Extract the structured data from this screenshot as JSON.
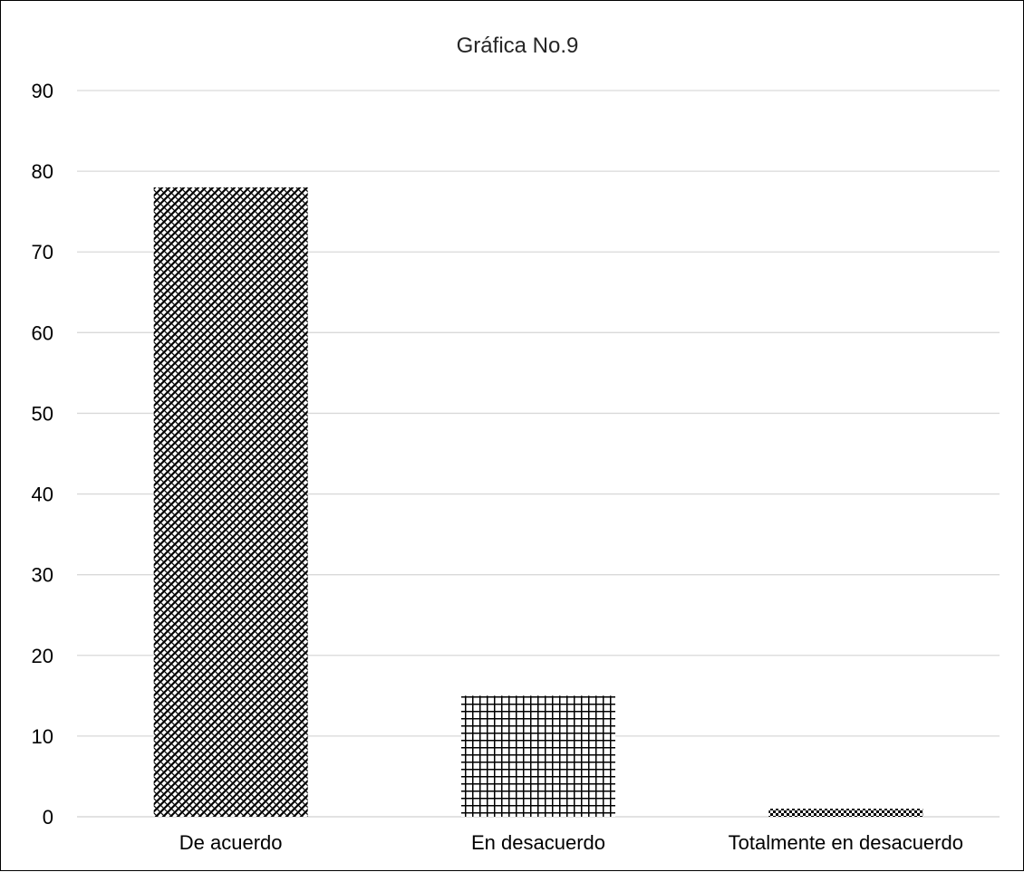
{
  "chart_data": {
    "type": "bar",
    "title": "Gráfica No.9",
    "xlabel": "",
    "ylabel": "",
    "categories": [
      "De acuerdo",
      "En desacuerdo",
      "Totalmente en desacuerdo"
    ],
    "values": [
      78,
      15,
      1
    ],
    "ylim": [
      0,
      90
    ],
    "yticks": [
      0,
      10,
      20,
      30,
      40,
      50,
      60,
      70,
      80,
      90
    ],
    "grid": true,
    "legend": "none",
    "bar_patterns": [
      "diagonal-weave",
      "grid",
      "checker"
    ],
    "colors": {
      "bar": "#000000",
      "gridline": "#d9d9d9",
      "title": "#262626",
      "text": "#000000"
    }
  }
}
